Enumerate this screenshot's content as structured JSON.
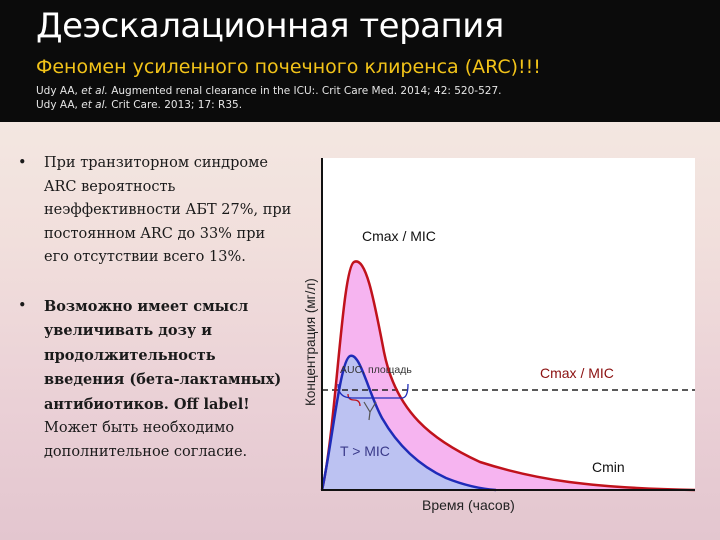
{
  "header": {
    "title": "Деэскалационная терапия",
    "subtitle": "Феномен усиленного почечного клиренса (ARC)!!!",
    "refs": [
      {
        "authors": "Udy AA,",
        "etal": "et al.",
        "rest": "Augmented renal clearance in the ICU:. Crit Care Med. 2014; 42: 520-527."
      },
      {
        "authors": "Udy AA,",
        "etal": "et al.",
        "rest": "Crit Care. 2013; 17: R35."
      }
    ]
  },
  "bullets": {
    "marker": "•",
    "b1": "При транзиторном синдроме ARC вероятность неэффективности АБТ 27%, при постоянном ARC до 33% при его отсутствии всего 13%.",
    "b2_bold": "Возможно имеет смысл увеличивать дозу и продолжительность введения (бета-лактамных) антибиотиков. Off label!",
    "b2_normal": "Может быть необходимо дополнительное согласие."
  },
  "diagram": {
    "y_axis_label": "Концентрация (мг/л)",
    "x_axis_label": "Время (часов)",
    "cmax_label_top": "Cmax / MIC",
    "cmax_label_right": "Cmax / MIC",
    "auc_label": "AUC, площадь",
    "t_mic_label": "T > MIC",
    "cmin_label": "Cmin",
    "colors": {
      "red_curve": "#c0121c",
      "blue_curve": "#1f2bb8",
      "pink_fill": "#f6b4f0",
      "lavender_fill": "#bcc2f2",
      "mic_line": "#222222",
      "plot_bg": "#ffffff"
    }
  }
}
